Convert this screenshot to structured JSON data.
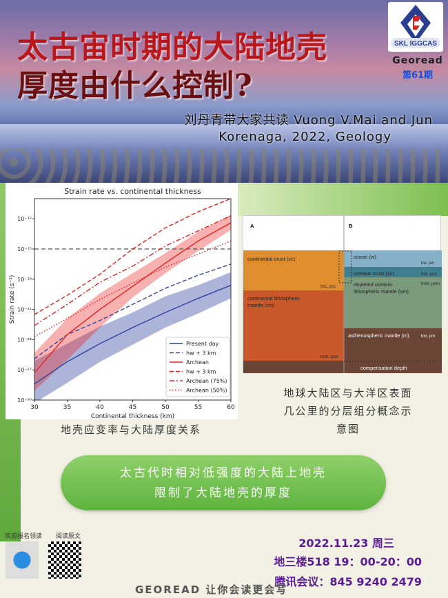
{
  "header": {
    "title_line1": "太古宙时期的大陆地壳",
    "title_line2": "厚度由什么控制?",
    "subtitle_line1": "刘丹青带大家共读 Vuong V.Mai and Jun",
    "subtitle_line2": "Korenaga, 2022, Geology",
    "logo_text": "SKL IGGCAS",
    "series_name": "Georead",
    "issue": "第61期"
  },
  "chart_data": {
    "type": "line",
    "title": "Strain rate vs. continental thickness",
    "xlabel": "Continental thickness (km)",
    "ylabel": "Strain rate (s⁻¹)",
    "xlim": [
      30,
      60
    ],
    "ylim_log10": [
      -30,
      -10
    ],
    "y_scale": "log",
    "xticks": [
      30,
      35,
      40,
      45,
      50,
      55,
      60
    ],
    "yticks_log10": [
      -30,
      -27,
      -24,
      -21,
      -18,
      -15,
      -12
    ],
    "yticks": [
      "10⁻³⁰",
      "10⁻²⁷",
      "10⁻²⁴",
      "10⁻²¹",
      "10⁻¹⁸",
      "10⁻¹⁵",
      "10⁻¹²"
    ],
    "reference_line_log10": -15,
    "legend_position": "bottom-right",
    "x": [
      30,
      35,
      40,
      45,
      50,
      55,
      60
    ],
    "series": [
      {
        "name": "Present day",
        "color": "#2f43a0",
        "style": "solid",
        "log10_values": [
          -28.4,
          -26.2,
          -24.4,
          -22.8,
          -21.3,
          -19.9,
          -18.6
        ],
        "band_upper": [
          -26.1,
          -24.4,
          -22.7,
          -21.3,
          -19.7,
          -18.6,
          -17.3
        ],
        "band_lower": [
          -30.3,
          -28.3,
          -26.2,
          -24.5,
          -22.8,
          -21.4,
          -19.9
        ]
      },
      {
        "name": "hw + 3 km",
        "color": "#2f43a0",
        "style": "dashed",
        "log10_values": [
          -25.9,
          -23.5,
          -22.1,
          -20.5,
          -18.9,
          -17.6,
          -16.5
        ]
      },
      {
        "name": "Archean",
        "color": "#e8201f",
        "style": "solid",
        "log10_values": [
          -27.3,
          -23.5,
          -21.0,
          -18.7,
          -16.4,
          -14.2,
          -12.4
        ],
        "band_upper": [
          -25.3,
          -21.9,
          -19.4,
          -17.4,
          -15.4,
          -13.3,
          -11.6
        ],
        "band_lower": [
          -29.1,
          -26.0,
          -22.8,
          -19.8,
          -17.4,
          -15.2,
          -13.1
        ]
      },
      {
        "name": "hw + 3 km",
        "color": "#e8201f",
        "style": "dashed",
        "log10_values": [
          -21.5,
          -19.6,
          -17.5,
          -15.0,
          -12.9,
          -11.3,
          -10.0
        ]
      },
      {
        "name": "Archean (75%)",
        "color": "#e8201f",
        "style": "dashdot",
        "log10_values": [
          -22.6,
          -20.5,
          -18.3,
          -16.7,
          -14.7,
          -13.2,
          -11.7
        ]
      },
      {
        "name": "Archean (50%)",
        "color": "#e8201f",
        "style": "dotted",
        "log10_values": [
          -23.7,
          -21.9,
          -20.0,
          -18.4,
          -16.8,
          -15.5,
          -14.2
        ]
      }
    ]
  },
  "chart_caption": "地壳应变率与大陆厚度关系",
  "diagram": {
    "panel_a": "A",
    "panel_b": "B",
    "layers": {
      "cc": "continental crust (cc)",
      "cm1": "continental lithospheric",
      "cm2": "mantle (cm)",
      "w": "ocean (w)",
      "oc": "oceanic crust (oc)",
      "om1": "depleted oceanic",
      "om2": "lithospheric mantle (om)",
      "m": "asthenospheric mantle (m)",
      "comp": "compensation depth"
    },
    "symbols": {
      "cc": "hcc, ρcc",
      "cm": "hcm, ρcm",
      "w": "hw, ρw",
      "oc": "hoc, ρoc",
      "om": "hom, ρom",
      "m": "hm, ρm"
    },
    "colors": {
      "cc": "#df8e2f",
      "cm": "#c9592a",
      "w": "#86b0c8",
      "oc": "#3f7f8f",
      "om": "#7b9a7c",
      "m": "#6a4535"
    }
  },
  "diagram_caption": [
    "地球大陆区与大洋区表面",
    "几公里的分层组分概念示",
    "意图"
  ],
  "highlight": [
    "太古代时相对低强度的大陆上地壳",
    "限制了大陆地壳的厚度"
  ],
  "event": {
    "date": "2022.11.23 周三",
    "place_time": "地三楼518 19：00-20：00",
    "meeting": "腾讯会议：845 9240 2479"
  },
  "qr": {
    "signup_label": "欢迎报名领读",
    "read_label": "阅读原文"
  },
  "footer": "GEOREAD 让你会读更会写"
}
